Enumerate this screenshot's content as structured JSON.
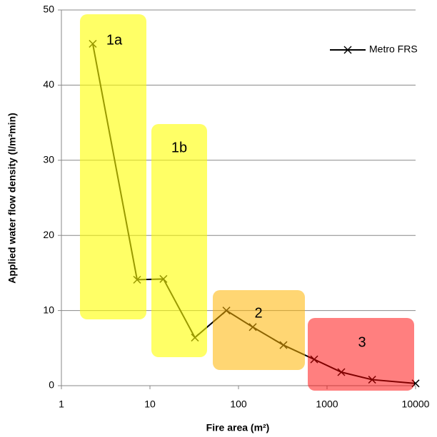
{
  "chart_data": {
    "type": "line",
    "x_label": "Fire area (m²)",
    "y_label": "Applied water flow density (l/m²min)",
    "x_scale": "log",
    "xlim": [
      1,
      10000
    ],
    "xticks": [
      1,
      10,
      100,
      1000,
      10000
    ],
    "ylim": [
      0,
      50
    ],
    "yticks": [
      0,
      10,
      20,
      30,
      40,
      50
    ],
    "grid": true,
    "legend": "upper right",
    "series": [
      {
        "name": "Metro FRS",
        "color": "#000000",
        "x": [
          2.26,
          7.16,
          14.2,
          32.2,
          73,
          145,
          322,
          716,
          1450,
          3230,
          10000
        ],
        "values": [
          45.5,
          14.1,
          14.2,
          6.4,
          10.0,
          7.8,
          5.4,
          3.5,
          1.8,
          0.8,
          0.3
        ]
      }
    ],
    "annotations": [
      "1a",
      "1b",
      "2",
      "3"
    ]
  }
}
